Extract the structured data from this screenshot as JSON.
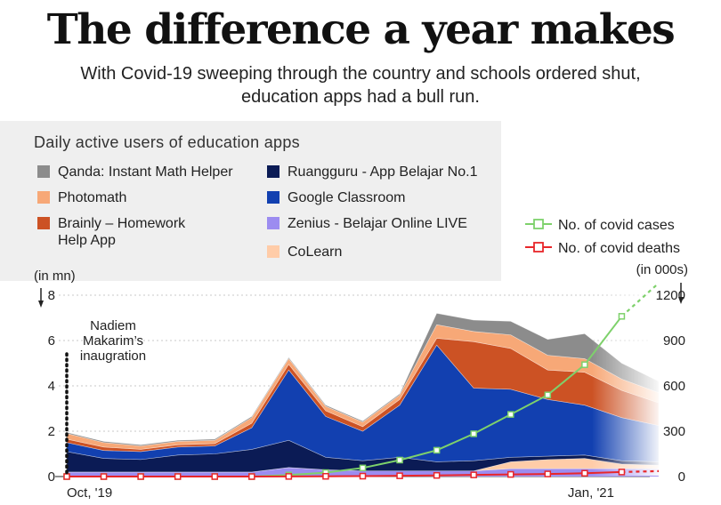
{
  "title": "The difference a year makes",
  "subtitle_line1": "With Covid-19 sweeping through the country and schools ordered shut,",
  "subtitle_line2": "education apps had a bull run.",
  "colors": {
    "qanda": "#8c8c8c",
    "photomath": "#f7a877",
    "brainly": "#cc5224",
    "ruangguru": "#0b1b55",
    "google_classroom": "#1240b0",
    "zenius": "#9c8cf0",
    "colearn": "#ffcca8",
    "covid_cases": "#7ed16b",
    "covid_deaths": "#e8262a"
  },
  "chart_data": {
    "type": "area",
    "title": "Daily active users of education apps",
    "left_axis_unit": "(in mn)",
    "right_axis_unit": "(in 000s)",
    "x_start_label": "Oct, '19",
    "x_end_label": "Jan, '21",
    "ylim_left": [
      0,
      8
    ],
    "ylim_right": [
      0,
      1200
    ],
    "left_ticks": [
      "0",
      "2",
      "4",
      "6",
      "8"
    ],
    "right_ticks": [
      "0",
      "300",
      "600",
      "900",
      "1200"
    ],
    "x": [
      "Oct 2019",
      "Nov 2019",
      "Dec 2019",
      "Jan 2020",
      "Feb 2020",
      "Mar 2020",
      "Apr 2020",
      "May 2020",
      "Jun 2020",
      "Jul 2020",
      "Aug 2020",
      "Sep 2020",
      "Oct 2020",
      "Nov 2020",
      "Dec 2020",
      "Jan 2021",
      "Feb 2021"
    ],
    "stacked_series": [
      {
        "name": "Zenius - Belajar Online LIVE",
        "color_key": "zenius",
        "values": [
          0.2,
          0.2,
          0.2,
          0.2,
          0.2,
          0.2,
          0.4,
          0.3,
          0.25,
          0.25,
          0.25,
          0.25,
          0.35,
          0.35,
          0.35,
          0.35,
          0.35
        ]
      },
      {
        "name": "CoLearn",
        "color_key": "colearn",
        "values": [
          0,
          0,
          0,
          0,
          0,
          0,
          0,
          0,
          0,
          0,
          0,
          0,
          0.3,
          0.4,
          0.45,
          0.2,
          0.15
        ]
      },
      {
        "name": "Ruangguru - App Belajar No.1",
        "color_key": "ruangguru",
        "values": [
          0.9,
          0.6,
          0.55,
          0.75,
          0.8,
          1.0,
          1.2,
          0.55,
          0.45,
          0.6,
          0.4,
          0.45,
          0.2,
          0.15,
          0.15,
          0.15,
          0.15
        ]
      },
      {
        "name": "Google Classroom",
        "color_key": "google_classroom",
        "values": [
          0.4,
          0.35,
          0.35,
          0.35,
          0.35,
          0.95,
          3.1,
          1.8,
          1.3,
          2.3,
          5.15,
          3.2,
          3.0,
          2.5,
          2.2,
          1.9,
          1.6
        ]
      },
      {
        "name": "Brainly – Homework Help App",
        "color_key": "brainly",
        "values": [
          0.15,
          0.15,
          0.1,
          0.1,
          0.1,
          0.2,
          0.25,
          0.25,
          0.2,
          0.25,
          0.3,
          2.05,
          1.8,
          1.3,
          1.45,
          1.2,
          1.0
        ]
      },
      {
        "name": "Photomath",
        "color_key": "photomath",
        "values": [
          0.25,
          0.2,
          0.15,
          0.15,
          0.15,
          0.25,
          0.25,
          0.2,
          0.2,
          0.2,
          0.6,
          0.45,
          0.6,
          0.65,
          0.6,
          0.5,
          0.45
        ]
      },
      {
        "name": "Qanda: Instant Math Helper",
        "color_key": "qanda",
        "values": [
          0.05,
          0.05,
          0.05,
          0.05,
          0.05,
          0.05,
          0.05,
          0.05,
          0.05,
          0.05,
          0.5,
          0.5,
          0.6,
          0.7,
          1.1,
          0.7,
          0.5
        ]
      }
    ],
    "line_series": [
      {
        "name": "No. of covid cases",
        "color_key": "covid_cases",
        "axis": "right",
        "values": [
          0,
          0,
          0,
          0,
          0,
          0,
          10,
          26,
          57,
          109,
          174,
          283,
          411,
          540,
          740,
          1060,
          1280
        ]
      },
      {
        "name": "No. of covid deaths",
        "color_key": "covid_deaths",
        "axis": "right",
        "values": [
          0,
          0,
          0,
          0,
          0,
          0,
          0.8,
          1.6,
          2.7,
          5.0,
          7.6,
          10.9,
          14.0,
          17.0,
          21.9,
          30.0,
          36.0
        ]
      }
    ],
    "legend_order": [
      "Qanda: Instant Math Helper",
      "Photomath",
      "Brainly – Homework Help App",
      "Ruangguru - App Belajar No.1",
      "Google Classroom",
      "Zenius - Belajar Online LIVE",
      "CoLearn"
    ],
    "annotation": {
      "lines": [
        "Nadiem",
        "Makarim’s",
        "inaugration"
      ],
      "x": "Oct 2019"
    }
  },
  "legend": {
    "title": "Daily active users of education apps",
    "items": [
      {
        "label_lines": [
          "Qanda: Instant Math Helper"
        ],
        "color_key": "qanda"
      },
      {
        "label_lines": [
          "Photomath"
        ],
        "color_key": "photomath"
      },
      {
        "label_lines": [
          "Brainly – Homework",
          "Help App"
        ],
        "color_key": "brainly"
      },
      {
        "label_lines": [
          "Ruangguru - App Belajar No.1"
        ],
        "color_key": "ruangguru"
      },
      {
        "label_lines": [
          "Google Classroom"
        ],
        "color_key": "google_classroom"
      },
      {
        "label_lines": [
          "Zenius - Belajar Online LIVE"
        ],
        "color_key": "zenius"
      },
      {
        "label_lines": [
          "CoLearn"
        ],
        "color_key": "colearn"
      }
    ],
    "line_items": [
      {
        "label": "No. of covid cases",
        "color_key": "covid_cases"
      },
      {
        "label": "No. of covid deaths",
        "color_key": "covid_deaths"
      }
    ]
  }
}
